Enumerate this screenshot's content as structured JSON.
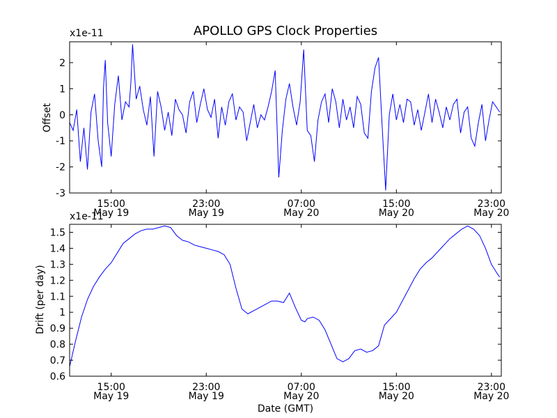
{
  "figure": {
    "title": "APOLLO GPS Clock Properties",
    "xlabel": "Date (GMT)"
  },
  "chart_data": [
    {
      "type": "line",
      "ylabel": "Offset",
      "offset_label": "x1e-11",
      "ylim": [
        -3.0,
        2.8
      ],
      "y_ticks": [
        -3,
        -2,
        -1,
        0,
        1,
        2
      ],
      "x_range": [
        "May 19 11:30",
        "May 20 23:50"
      ],
      "x_ticks": [
        {
          "time": "15:00",
          "date": "May 19"
        },
        {
          "time": "23:00",
          "date": "May 19"
        },
        {
          "time": "07:00",
          "date": "May 20"
        },
        {
          "time": "15:00",
          "date": "May 20"
        },
        {
          "time": "23:00",
          "date": "May 20"
        }
      ],
      "color": "#0000ff",
      "series": [
        {
          "x_hours": [
            0.0,
            0.3,
            0.6,
            0.9,
            1.2,
            1.5,
            1.8,
            2.1,
            2.4,
            2.7,
            2.85,
            3.0,
            3.2,
            3.5,
            3.8,
            4.1,
            4.4,
            4.7,
            5.0,
            5.15,
            5.3,
            5.6,
            5.9,
            6.2,
            6.5,
            6.8,
            7.1,
            7.4,
            7.7,
            8.0,
            8.3,
            8.6,
            8.9,
            9.2,
            9.5,
            9.8,
            10.1,
            10.4,
            10.7,
            11.0,
            11.3,
            11.6,
            11.9,
            12.2,
            12.5,
            12.8,
            13.1,
            13.4,
            13.7,
            14.0,
            14.3,
            14.6,
            14.9,
            15.2,
            15.5,
            15.8,
            16.1,
            16.4,
            16.7,
            17.0,
            17.3,
            17.6,
            17.9,
            18.2,
            18.5,
            18.8,
            19.1,
            19.4,
            19.7,
            20.0,
            20.3,
            20.6,
            20.9,
            21.2,
            21.5,
            21.8,
            22.1,
            22.4,
            22.7,
            23.0,
            23.3,
            23.6,
            23.9,
            24.2,
            24.5,
            24.8,
            25.1,
            25.4,
            25.7,
            26.0,
            26.3,
            26.6,
            26.9,
            27.2,
            27.5,
            27.8,
            28.1,
            28.4,
            28.7,
            29.0,
            29.3,
            29.6,
            29.9,
            30.2,
            30.5,
            30.8,
            31.1,
            31.4,
            31.7,
            32.0,
            32.3,
            32.6,
            32.9,
            33.2,
            33.5,
            33.8,
            34.1,
            34.4,
            34.7,
            35.0,
            35.3,
            35.6,
            35.9,
            36.2
          ],
          "values": [
            -0.3,
            -0.6,
            0.2,
            -1.8,
            -0.5,
            -2.1,
            0.1,
            0.8,
            -1.0,
            -2.0,
            1.0,
            2.1,
            -0.3,
            -1.6,
            0.4,
            1.5,
            -0.2,
            0.5,
            0.3,
            1.2,
            2.7,
            0.6,
            1.1,
            0.2,
            -0.4,
            0.7,
            -1.6,
            0.9,
            0.3,
            -0.6,
            0.1,
            -0.8,
            0.6,
            0.2,
            0.0,
            -0.7,
            0.5,
            0.9,
            -0.3,
            0.4,
            1.0,
            0.2,
            -0.1,
            0.6,
            -0.9,
            0.3,
            -0.4,
            0.5,
            0.8,
            -0.2,
            0.3,
            0.1,
            -1.0,
            -0.3,
            0.4,
            -0.5,
            0.0,
            -0.2,
            0.3,
            0.9,
            1.7,
            -2.4,
            -0.6,
            0.6,
            1.2,
            0.3,
            -0.4,
            0.5,
            2.5,
            -0.6,
            -0.8,
            -1.8,
            -0.2,
            0.5,
            0.8,
            -0.3,
            1.0,
            0.5,
            -0.5,
            0.6,
            -0.2,
            0.3,
            -0.5,
            0.7,
            0.4,
            -0.7,
            -0.9,
            0.9,
            1.8,
            2.2,
            -0.4,
            -2.9,
            0.0,
            0.8,
            -0.2,
            0.4,
            -0.3,
            0.6,
            0.5,
            -0.4,
            0.2,
            -0.6,
            0.1,
            0.8,
            -0.3,
            0.6,
            0.1,
            -0.5,
            0.3,
            -0.2,
            0.4,
            0.6,
            -0.7,
            0.1,
            0.3,
            -0.9,
            -1.2,
            -0.3,
            0.4,
            -1.0,
            -0.2,
            0.5,
            0.3,
            0.1
          ]
        }
      ]
    },
    {
      "type": "line",
      "ylabel": "Drift (per day)",
      "offset_label": "x1e-11",
      "ylim": [
        0.6,
        1.55
      ],
      "y_ticks": [
        0.6,
        0.7,
        0.8,
        0.9,
        1.0,
        1.1,
        1.2,
        1.3,
        1.4,
        1.5
      ],
      "x_range": [
        "May 19 11:30",
        "May 20 23:50"
      ],
      "x_ticks": [
        {
          "time": "15:00",
          "date": "May 19"
        },
        {
          "time": "23:00",
          "date": "May 19"
        },
        {
          "time": "07:00",
          "date": "May 20"
        },
        {
          "time": "15:00",
          "date": "May 20"
        },
        {
          "time": "23:00",
          "date": "May 20"
        }
      ],
      "color": "#0000ff",
      "series": [
        {
          "x_hours": [
            0.0,
            0.5,
            1.0,
            1.5,
            2.0,
            2.5,
            3.0,
            3.5,
            4.0,
            4.5,
            5.0,
            5.5,
            6.0,
            6.5,
            7.0,
            7.5,
            8.0,
            8.5,
            9.0,
            9.5,
            10.0,
            10.5,
            11.0,
            11.5,
            12.0,
            12.5,
            13.0,
            13.5,
            14.0,
            14.5,
            15.0,
            15.5,
            16.0,
            16.5,
            17.0,
            17.5,
            18.0,
            18.5,
            19.0,
            19.5,
            19.8,
            20.0,
            20.5,
            21.0,
            21.5,
            22.0,
            22.5,
            23.0,
            23.5,
            24.0,
            24.5,
            25.0,
            25.5,
            26.0,
            26.5,
            27.0,
            27.5,
            28.0,
            28.5,
            29.0,
            29.5,
            30.0,
            30.5,
            31.0,
            31.5,
            32.0,
            32.5,
            33.0,
            33.5,
            34.0,
            34.5,
            35.0,
            35.5,
            36.0,
            36.2
          ],
          "values": [
            0.66,
            0.82,
            0.97,
            1.08,
            1.16,
            1.22,
            1.27,
            1.31,
            1.37,
            1.43,
            1.46,
            1.49,
            1.51,
            1.52,
            1.52,
            1.53,
            1.54,
            1.53,
            1.48,
            1.45,
            1.44,
            1.42,
            1.41,
            1.4,
            1.39,
            1.38,
            1.36,
            1.3,
            1.15,
            1.02,
            0.99,
            1.01,
            1.03,
            1.05,
            1.07,
            1.07,
            1.06,
            1.12,
            1.03,
            0.95,
            0.94,
            0.96,
            0.97,
            0.95,
            0.89,
            0.8,
            0.71,
            0.69,
            0.71,
            0.76,
            0.77,
            0.75,
            0.76,
            0.79,
            0.92,
            0.96,
            1.0,
            1.07,
            1.14,
            1.21,
            1.27,
            1.31,
            1.34,
            1.38,
            1.42,
            1.46,
            1.49,
            1.52,
            1.54,
            1.52,
            1.48,
            1.4,
            1.3,
            1.24,
            1.22
          ]
        }
      ]
    }
  ]
}
